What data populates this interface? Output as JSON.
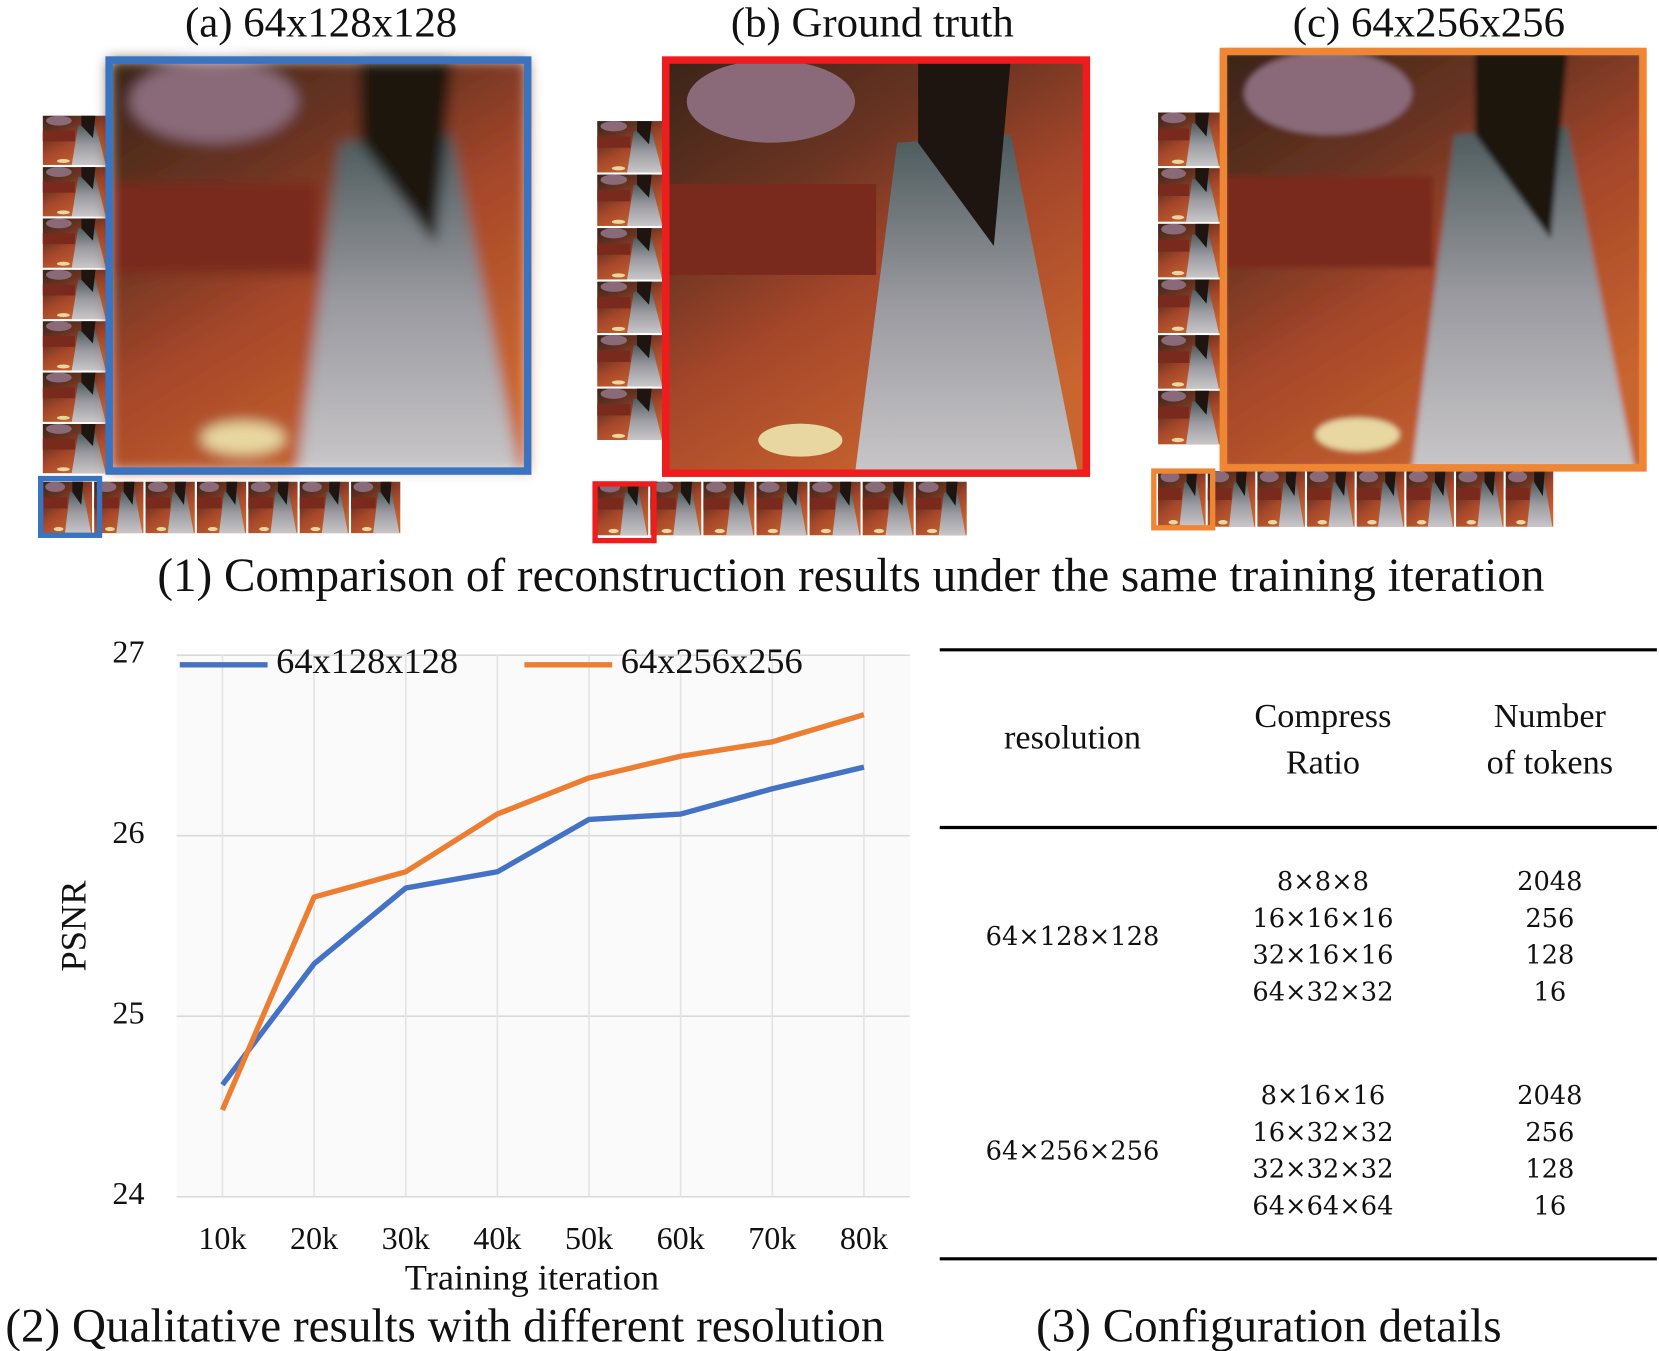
{
  "panels": [
    {
      "label": "(a) 64x128x128",
      "color": "#3a73c0"
    },
    {
      "label": "(b) Ground truth",
      "color": "#ee1c1c"
    },
    {
      "label": "(c) 64x256x256",
      "color": "#ef8633"
    }
  ],
  "caption1": "(1) Comparison of reconstruction results under the same training iteration",
  "chart_data": {
    "type": "line",
    "categories": [
      "10k",
      "20k",
      "30k",
      "40k",
      "50k",
      "60k",
      "70k",
      "80k"
    ],
    "series": [
      {
        "name": "64x128x128",
        "color": "#4472c4",
        "values": [
          24.62,
          25.29,
          25.71,
          25.8,
          26.09,
          26.12,
          26.26,
          26.38
        ]
      },
      {
        "name": "64x256x256",
        "color": "#ed7d31",
        "values": [
          24.48,
          25.66,
          25.8,
          26.12,
          26.32,
          26.44,
          26.52,
          26.67
        ]
      }
    ],
    "ylim": [
      24,
      27
    ],
    "yticks": [
      24,
      25,
      26,
      27
    ],
    "xlabel": "Training iteration",
    "ylabel": "PSNR",
    "grid": true,
    "legend": "top"
  },
  "caption2": "(2) Qualitative results with different resolution",
  "caption3": "(3) Configuration details",
  "table": {
    "header": [
      [
        "resolution"
      ],
      [
        "Compress",
        "Ratio"
      ],
      [
        "Number",
        "of tokens"
      ]
    ],
    "groups": [
      {
        "resolution": "64×128×128",
        "ratios": [
          "8×8×8",
          "16×16×16",
          "32×16×16",
          "64×32×32"
        ],
        "tokens": [
          2048,
          256,
          128,
          16
        ]
      },
      {
        "resolution": "64×256×256",
        "ratios": [
          "8×16×16",
          "16×32×32",
          "32×32×32",
          "64×64×64"
        ],
        "tokens": [
          2048,
          256,
          128,
          16
        ]
      }
    ]
  }
}
